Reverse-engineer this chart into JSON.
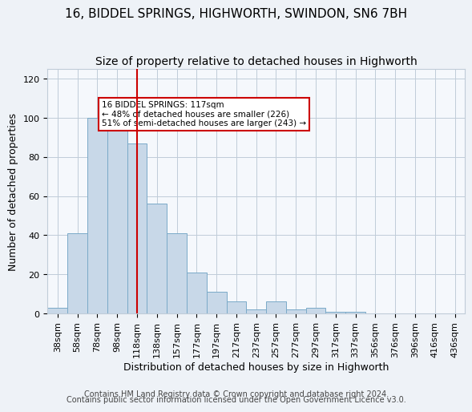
{
  "title1": "16, BIDDEL SPRINGS, HIGHWORTH, SWINDON, SN6 7BH",
  "title2": "Size of property relative to detached houses in Highworth",
  "xlabel": "Distribution of detached houses by size in Highworth",
  "ylabel": "Number of detached properties",
  "bar_labels": [
    "38sqm",
    "58sqm",
    "78sqm",
    "98sqm",
    "118sqm",
    "138sqm",
    "157sqm",
    "177sqm",
    "197sqm",
    "217sqm",
    "237sqm",
    "257sqm",
    "277sqm",
    "297sqm",
    "317sqm",
    "337sqm",
    "356sqm",
    "376sqm",
    "396sqm",
    "416sqm",
    "436sqm"
  ],
  "bar_values": [
    3,
    41,
    100,
    96,
    87,
    56,
    41,
    21,
    11,
    6,
    2,
    6,
    2,
    3,
    1,
    1,
    0,
    0,
    0,
    0,
    0
  ],
  "bar_color": "#c8d8e8",
  "bar_edgecolor": "#7aaac8",
  "vline_x": 4,
  "vline_color": "#cc0000",
  "annotation_text": "16 BIDDEL SPRINGS: 117sqm\n← 48% of detached houses are smaller (226)\n51% of semi-detached houses are larger (243) →",
  "annotation_box_edgecolor": "#cc0000",
  "ylim": [
    0,
    125
  ],
  "yticks": [
    0,
    20,
    40,
    60,
    80,
    100,
    120
  ],
  "footer1": "Contains HM Land Registry data © Crown copyright and database right 2024.",
  "footer2": "Contains public sector information licensed under the Open Government Licence v3.0.",
  "bg_color": "#eef2f7",
  "plot_bg_color": "#f5f8fc",
  "grid_color": "#c0ccd8",
  "title_fontsize": 11,
  "subtitle_fontsize": 10,
  "axis_label_fontsize": 9,
  "tick_fontsize": 8,
  "footer_fontsize": 7
}
